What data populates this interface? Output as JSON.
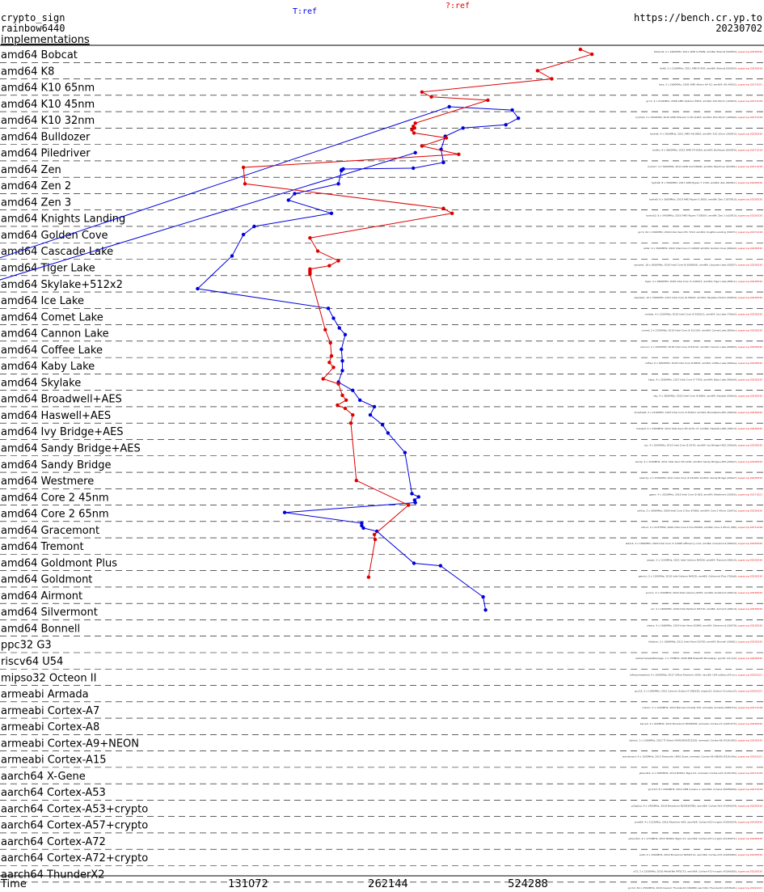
{
  "header": {
    "primitive": "crypto_sign",
    "scheme": "rainbow6440",
    "implementations_link": "implementations",
    "site": "https://bench.cr.yp.to",
    "date": "20230702"
  },
  "chart_data": {
    "type": "line",
    "xlabel": "Time",
    "x_ticks": [
      131072,
      262144,
      524288
    ],
    "x_scale": "log2",
    "grid": "dashed row separators",
    "series": [
      {
        "name": "T:ref",
        "color": "#0000dd"
      },
      {
        "name": "?:ref",
        "color": "#dd0000"
      }
    ],
    "categories": [
      "amd64 Bobcat",
      "amd64 K8",
      "amd64 K10 65nm",
      "amd64 K10 45nm",
      "amd64 K10 32nm",
      "amd64 Bulldozer",
      "amd64 Piledriver",
      "amd64 Zen",
      "amd64 Zen 2",
      "amd64 Zen 3",
      "amd64 Knights Landing",
      "amd64 Golden Cove",
      "amd64 Cascade Lake",
      "amd64 Tiger Lake",
      "amd64 Skylake+512x2",
      "amd64 Ice Lake",
      "amd64 Comet Lake",
      "amd64 Cannon Lake",
      "amd64 Coffee Lake",
      "amd64 Kaby Lake",
      "amd64 Skylake",
      "amd64 Broadwell+AES",
      "amd64 Haswell+AES",
      "amd64 Ivy Bridge+AES",
      "amd64 Sandy Bridge+AES",
      "amd64 Sandy Bridge",
      "amd64 Westmere",
      "amd64 Core 2 45nm",
      "amd64 Core 2 65nm",
      "amd64 Gracemont",
      "amd64 Tremont",
      "amd64 Goldmont Plus",
      "amd64 Goldmont",
      "amd64 Airmont",
      "amd64 Silvermont",
      "amd64 Bonnell",
      "ppc32 G3",
      "riscv64 U54",
      "mipso32 Octeon II",
      "armeabi Armada",
      "armeabi Cortex-A7",
      "armeabi Cortex-A8",
      "armeabi Cortex-A9+NEON",
      "armeabi Cortex-A15",
      "aarch64 X-Gene",
      "aarch64 Cortex-A53",
      "aarch64 Cortex-A53+crypto",
      "aarch64 Cortex-A57+crypto",
      "aarch64 Cortex-A72",
      "aarch64 Cortex-A72+crypto",
      "aarch64 ThunderX2"
    ],
    "blue_points": [
      [
        300000,
        6.5
      ],
      [
        1000,
        28
      ],
      [
        355000,
        3.7
      ],
      [
        485000,
        3.9
      ],
      [
        500000,
        4.4
      ],
      [
        470000,
        4.8
      ],
      [
        380000,
        5.0
      ],
      [
        348000,
        5.5
      ],
      [
        341000,
        6.3
      ],
      [
        345000,
        7.1
      ],
      [
        297000,
        7.45
      ],
      [
        210000,
        7.5
      ],
      [
        208000,
        7.55
      ],
      [
        208000,
        7.6
      ],
      [
        205000,
        8.4
      ],
      [
        165000,
        9.0
      ],
      [
        160000,
        9.4
      ],
      [
        198000,
        10.2
      ],
      [
        135000,
        11.0
      ],
      [
        128000,
        11.5
      ],
      [
        121000,
        12.8
      ],
      [
        102000,
        14.8
      ],
      [
        195000,
        16.0
      ],
      [
        200000,
        16.6
      ],
      [
        206000,
        17.2
      ],
      [
        212000,
        17.6
      ],
      [
        208000,
        18.5
      ],
      [
        209000,
        19.2
      ],
      [
        209000,
        19.8
      ],
      [
        205000,
        20.5
      ],
      [
        220000,
        21.0
      ],
      [
        228000,
        21.6
      ],
      [
        245000,
        22.0
      ],
      [
        240000,
        22.5
      ],
      [
        255000,
        23.1
      ],
      [
        262000,
        23.6
      ],
      [
        285000,
        24.8
      ],
      [
        295000,
        27.3
      ],
      [
        305000,
        27.5
      ],
      [
        299000,
        27.7
      ],
      [
        300000,
        27.85
      ],
      [
        157000,
        28.45
      ],
      [
        230000,
        29.1
      ],
      [
        230000,
        29.25
      ],
      [
        232000,
        29.4
      ],
      [
        248000,
        29.6
      ],
      [
        298000,
        31.55
      ],
      [
        340000,
        31.7
      ],
      [
        420000,
        33.6
      ],
      [
        425000,
        34.4
      ]
    ],
    "red_points": [
      [
        680000,
        0.2
      ],
      [
        720000,
        0.5
      ],
      [
        550000,
        1.5
      ],
      [
        590000,
        2.0
      ],
      [
        310000,
        2.8
      ],
      [
        325000,
        3.1
      ],
      [
        430000,
        3.3
      ],
      [
        300000,
        4.7
      ],
      [
        297000,
        4.9
      ],
      [
        299000,
        5.0
      ],
      [
        295000,
        5.1
      ],
      [
        298000,
        5.3
      ],
      [
        350000,
        5.6
      ],
      [
        310000,
        6.1
      ],
      [
        372000,
        6.6
      ],
      [
        128000,
        7.4
      ],
      [
        129000,
        8.4
      ],
      [
        345000,
        9.9
      ],
      [
        360000,
        10.2
      ],
      [
        178000,
        11.7
      ],
      [
        185000,
        12.5
      ],
      [
        205000,
        13.1
      ],
      [
        196000,
        13.4
      ],
      [
        178000,
        13.6
      ],
      [
        178000,
        13.7
      ],
      [
        178000,
        13.8
      ],
      [
        178000,
        13.9
      ],
      [
        192000,
        17.3
      ],
      [
        197000,
        18.1
      ],
      [
        198000,
        18.9
      ],
      [
        196000,
        19.3
      ],
      [
        200000,
        19.6
      ],
      [
        190000,
        20.3
      ],
      [
        205000,
        20.6
      ],
      [
        209000,
        21.3
      ],
      [
        213000,
        21.6
      ],
      [
        204000,
        21.9
      ],
      [
        212000,
        22.1
      ],
      [
        220000,
        22.5
      ],
      [
        218000,
        23.0
      ],
      [
        224000,
        26.5
      ],
      [
        290000,
        28.0
      ],
      [
        245000,
        29.8
      ],
      [
        246000,
        30.1
      ],
      [
        238000,
        32.4
      ]
    ],
    "machine_notes": [
      "bbobcat; 2 x 1600MHz; 2011 AMD G-T56N; amd64; Bobcat (500f20); supercop-20230530",
      "bkk8; 2 x 1000MHz; 2011 AMD E-450; amd64; Bobcat (500f20); supercop-20220616",
      "hsrz; 2 x 2600MHz; 2005 AMD Athlon 64 X2; amd64; K8 (40f32); supercop-20171021",
      "gcc1; 4 x 2104MHz; 2008 AMD Opteron 8354; amd64; K10 65nm (100f23); supercop-20171218",
      "hydra4; 3 x 3300MHz; 2010 AMD Phenom II X6 1100T; amd64; K10 45nm (100fa0); supercop-20171218",
      "hydra5; 4 x 2600MHz; 2011 AMD A8-3850; amd64; K10 32nm (300f10); supercop-20230530",
      "bulldo; 8 x 3600MHz; 2012 AMD FX-8350; amd64; Bulldozer (600f20); supercop-20171218",
      "hydra7; 4 x 3900MHz; 2012 AMD A10-5800K; amd64; Piledriver (610f01); supercop-20171218",
      "hydra8; 8 x 3500MHz; 2017 AMD Ryzen 7 1700; amd64; Zen (800f11); supercop-20230530",
      "hydra9; 6 x 3600MHz; 2019 AMD Ryzen 5 3600; amd64; Zen 2 (870f10); supercop-20230530",
      "hydra10; 8 x 3400MHz; 2020 AMD Ryzen 7 5800X; amd64; Zen 3 (a20f10); supercop-20230530",
      "gcc1; 64 x 1300MHz; 2016 Intel Xeon Phi 7210; amd64; Knights Landing (50671); supercop-20171218",
      "alder; 4 x 3000MHz; 2022 Intel Core i7-1260P; amd64; Golden Cove (906a3); supercop-20230530",
      "cascade; 18 x 3000MHz; 2019 Intel Core i9-10980XE; amd64; Cascade Lake (50657); supercop-20230530",
      "tiger; 4 x 2800MHz; 2020 Intel Core i7-1165G7; amd64; Tiger Lake (806c1); supercop-20230530",
      "skylakex; 10 x 3300MHz; 2017 Intel Core i9-7900X; amd64; Skylake+512x2 (50654); supercop-20230530",
      "icelake; 4 x 1100MHz; 2019 Intel Core i3-1005G1; amd64; Ice Lake (706e5); supercop-20230530",
      "comet; 2 x 2100MHz; 2019 Intel Core i3-10110U; amd64; Comet Lake (806ec); supercop-20230530",
      "cannon; 2 x 2200MHz; 2018 Intel Core i3-8121U; amd64; Cannon Lake (60663); supercop-20230530",
      "coffee; 6 x 3000MHz; 2018 Intel Core i5-8600; amd64; Coffee Lake (906ea); supercop-20230530",
      "kaby; 4 x 3500MHz; 2017 Intel Core i7-7700; amd64; Kaby Lake (906e9); supercop-20230530",
      "sky; 4 x 3500MHz; 2015 Intel Core i5-6600; amd64; Skylake (506e3); supercop-20230530",
      "broadwell; 2 x 2100MHz; 2015 Intel Core i3-5010U; amd64; Broadwell+AES (306d4); supercop-20230530",
      "haswell; 4 x 3400MHz; 2013 Intel Xeon E3-1275 v3; amd64; Haswell+AES (306c3); supercop-20230530",
      "ivy; 4 x 3500MHz; 2012 Intel Core i5-3570; amd64; Ivy Bridge+AES (306a9); supercop-20230530",
      "sandy; 4 x 3100MHz; 2011 Intel Xeon E3-1220; amd64; Sandy Bridge+AES (206a7); supercop-20230530",
      "bsandy; 2 x 2100MHz; 2011 Intel Core i3-2310M; amd64; Sandy Bridge (206a7); supercop-20230530",
      "gjwm; 4 x 3200MHz; 2010 Intel Core i5-650; amd64; Westmere (20655); supercop-20171021",
      "utrikis; 2 x 3000MHz; 2009 Intel Core 2 Duo E7600; amd64; Core 2 45nm (1067a); supercop-20230530",
      "latour; 2 x 2137MHz; 2006 Intel Core 2 Duo E6400; amd64; Core 2 65nm (6f6); supercop-20171218",
      "alder4; 4 x 1800MHz; 2022 Intel Core i7-1260P efficiency core; amd64; Gracemont (906a3); supercop-20230530",
      "jasper; 2 x 1100MHz; 2021 Intel Celeron N4500; amd64; Tremont (906c0); supercop-20230530",
      "gemini; 2 x 1100MHz; 2019 Intel Celeron N4020; amd64; Goldmont Plus (706a8); supercop-20230530",
      "ecoloc; 4 x 1500MHz; 2016 Intel Celeron J3455; amd64; Goldmont (506c9); supercop-20230530",
      "oci; 4 x 1600MHz; 2016 Intel Pentium N3710; amd64; Airmont (406c4); supercop-20230530",
      "disery; 4 x 1666MHz; 2014 Intel Atom E3845; amd64; Silvermont (30678); supercop-20230530",
      "h6atom; 2 x 1666MHz; 2011 Intel Atom D2700; amd64; Bonnell (30661); supercop-20230530",
      "wintermutealittlemage; 1 x 733MHz; 2000 IBM PowerPC Broadway; ppc32; G3 (G3); supercop-20230530",
      "hifiveunleashed; 4 x 1000MHz; 2017 SiFive Freedom U540; riscv64; U54 (sifive,u54-mc); supercop-20191221",
      "gcc23; 2 x 1000MHz; 2011 Cavium Octeon II CN6120; mipso32; Octeon II (octeon2); supercop-20191221",
      "cosmic; 1 x 1200MHz; 2010 Marvell Armada 370; armeabi; Armada (56f0715); supercop-20171218",
      "berry2; 4 x 900MHz; 2015 Broadcom BCM2836; armeabi; Cortex-A7 (410fc075); supercop-20230530",
      "bblack; 1 x 1000MHz; 2012 TI Sitara XAM3359AZCZ100; armeabi; Cortex-A8 (413fc082); supercop-20230530",
      "wandboard; 4 x 1000MHz; 2013 Freescale i.MX6 Quad; armeabi; Cortex-A9+NEON (412fc09a); supercop-20191221",
      "jetsontk1; 4 x 2065MHz; 2014 NVIDIA Tegra K1; armeabi; Cortex-A15 (413fc0f3); supercop-20171218",
      "gcc115; 8 x 2400MHz; 2014 APM X-Gene 1; aarch64; X-Gene (500f0000); supercop-20171218",
      "pi3aplus; 4 x 1400MHz; 2018 Broadcom BCM2837B0; aarch64; Cortex-A53 (410fd034); supercop-20230530",
      "pine64; 4 x 1152MHz; 2016 Allwinner A64; aarch64; Cortex-A53+crypto (410fd034); supercop-20230530",
      "jetsontx1; 4 x 1734MHz; 2015 NVIDIA Tegra X1; aarch64; Cortex-A57+crypto (411fd071); supercop-20230530",
      "pi4b; 4 x 1500MHz; 2019 Broadcom BCM2711; aarch64; Cortex-A72 (410fd083); supercop-20230530",
      "a72; 2 x 2100MHz; 2016 MediaTek MT8173; aarch64; Cortex-A72+crypto (410fd080); supercop-20230530",
      "gcc14; 64 x 2500MHz; 2018 Cavium ThunderX2 CN9980; aarch64; ThunderX2 (431f0af1); supercop-20191221"
    ]
  }
}
